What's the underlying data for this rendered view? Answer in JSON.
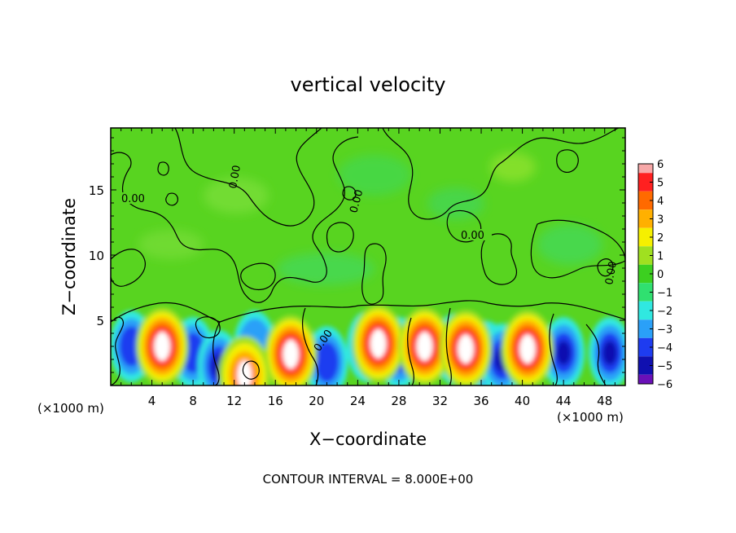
{
  "chart_data": {
    "type": "heatmap",
    "title": "vertical velocity",
    "xlabel": "X−coordinate",
    "ylabel": "Z−coordinate",
    "x_unit_left": "(×1000 m)",
    "x_unit_right": "(×1000 m)",
    "x_ticks": [
      4,
      8,
      12,
      16,
      20,
      24,
      28,
      32,
      36,
      40,
      44,
      48
    ],
    "y_ticks": [
      5,
      10,
      15
    ],
    "xlim": [
      0,
      50
    ],
    "ylim": [
      0,
      19.75
    ],
    "contour_label": "0.00",
    "footer": "CONTOUR INTERVAL = 8.000E+00",
    "colorbar": {
      "ticks": [
        "6",
        "5",
        "4",
        "3",
        "2",
        "1",
        "0",
        "−1",
        "−2",
        "−3",
        "−4",
        "−5",
        "−6"
      ],
      "colors": [
        "#f7a8a8",
        "#ff2020",
        "#ff6a00",
        "#ffb000",
        "#f5f000",
        "#a0e020",
        "#3cd020",
        "#30e070",
        "#30e8e0",
        "#2aa0f8",
        "#1e3cf0",
        "#1010b0",
        "#6a10b8"
      ]
    },
    "updrafts": [
      {
        "x": 5,
        "z": 3.0,
        "w_max": 6
      },
      {
        "x": 17.5,
        "z": 2.4,
        "w_max": 6
      },
      {
        "x": 13,
        "z": 0.8,
        "w_max": 4
      },
      {
        "x": 26,
        "z": 3.2,
        "w_max": 6
      },
      {
        "x": 30.5,
        "z": 3.0,
        "w_max": 6
      },
      {
        "x": 34.5,
        "z": 2.8,
        "w_max": 6
      },
      {
        "x": 40.5,
        "z": 2.8,
        "w_max": 6
      }
    ],
    "downdrafts": [
      {
        "x": 2,
        "z": 3.0,
        "w_min": -4
      },
      {
        "x": 8,
        "z": 2.5,
        "w_min": -4
      },
      {
        "x": 10.5,
        "z": 1.5,
        "w_min": -5
      },
      {
        "x": 14,
        "z": 3.0,
        "w_min": -3
      },
      {
        "x": 21,
        "z": 1.8,
        "w_min": -4
      },
      {
        "x": 25,
        "z": 3.0,
        "w_min": -5
      },
      {
        "x": 28,
        "z": 2.5,
        "w_min": -4
      },
      {
        "x": 33.5,
        "z": 2.8,
        "w_min": -6
      },
      {
        "x": 36.5,
        "z": 2.2,
        "w_min": -4
      },
      {
        "x": 38,
        "z": 2.0,
        "w_min": -5
      },
      {
        "x": 44,
        "z": 2.5,
        "w_min": -5
      },
      {
        "x": 48.5,
        "z": 2.5,
        "w_min": -5
      }
    ]
  }
}
